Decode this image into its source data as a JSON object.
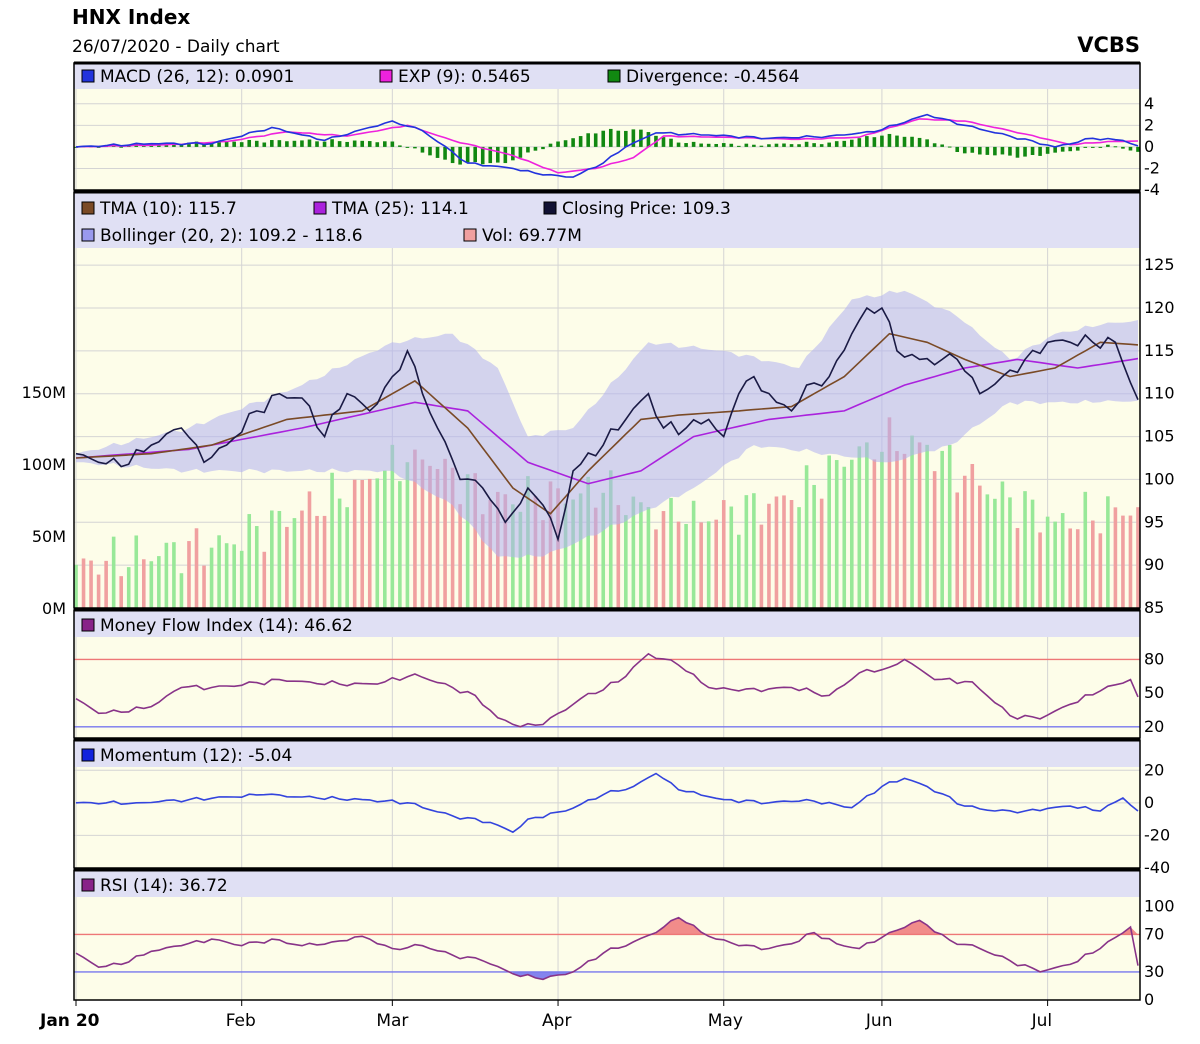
{
  "header": {
    "title": "HNX Index",
    "subtitle": "26/07/2020 - Daily chart",
    "brand": "VCBS"
  },
  "colors": {
    "panel_bg": "#fdfde9",
    "legend_bg": "#e0e0f4",
    "grid": "#d4d4d4",
    "macd": "#2233dd",
    "signal": "#ee22dd",
    "divergence": "#118811",
    "tma10": "#7a4a26",
    "tma25": "#aa22dd",
    "close": "#1a1a44",
    "bollinger_fill": "#b0b0f0",
    "bollinger_swatch": "#9999ee",
    "vol_up": "#98e898",
    "vol_down": "#f0a0a0",
    "mfi": "#883388",
    "momentum": "#3344dd",
    "rsi": "#883388",
    "line_high": "#ee7777",
    "line_low": "#7777ee",
    "overbought_fill": "#f08080",
    "oversold_fill": "#7777ee"
  },
  "legends": {
    "macd": [
      {
        "label": "MACD (26, 12): 0.0901",
        "color": "#2233dd"
      },
      {
        "label": "EXP (9): 0.5465",
        "color": "#ee22dd"
      },
      {
        "label": "Divergence: -0.4564",
        "color": "#118811"
      }
    ],
    "price_row1": [
      {
        "label": "TMA (10): 115.7",
        "color": "#7a4a26"
      },
      {
        "label": "TMA (25): 114.1",
        "color": "#aa22dd"
      },
      {
        "label": "Closing Price: 109.3",
        "color": "#111133"
      }
    ],
    "price_row2": [
      {
        "label": "Bollinger (20, 2): 109.2 - 118.6",
        "color": "#9999ee"
      },
      {
        "label": "Vol: 69.77M",
        "color": "#f0a0a0"
      }
    ],
    "mfi": {
      "label": "Money Flow Index (14): 46.62",
      "color": "#882288"
    },
    "momentum": {
      "label": "Momentum (12): -5.04",
      "color": "#1122dd"
    },
    "rsi": {
      "label": "RSI (14): 36.72",
      "color": "#882288"
    }
  },
  "chart_data": [
    {
      "type": "line",
      "name": "price",
      "x_labels": [
        "Jan 20",
        "Feb",
        "Mar",
        "Apr",
        "May",
        "Jun",
        "Jul"
      ],
      "ylim": [
        85,
        127
      ],
      "y_ticks": [
        "85",
        "90",
        "95",
        "100",
        "105",
        "110",
        "115",
        "120",
        "125"
      ],
      "volume_ticks": [
        "0M",
        "50M",
        "100M",
        "150M"
      ],
      "volume_ylim": [
        0,
        250
      ],
      "close_anchors": [
        [
          0,
          103
        ],
        [
          3,
          102
        ],
        [
          6,
          101.5
        ],
        [
          10,
          104
        ],
        [
          14,
          106
        ],
        [
          17,
          102
        ],
        [
          20,
          104
        ],
        [
          24,
          108
        ],
        [
          27,
          110
        ],
        [
          30,
          109.5
        ],
        [
          33,
          105
        ],
        [
          36,
          110
        ],
        [
          39,
          108
        ],
        [
          42,
          112
        ],
        [
          44,
          115
        ],
        [
          46,
          110
        ],
        [
          48,
          106
        ],
        [
          51,
          100
        ],
        [
          54,
          99
        ],
        [
          57,
          95
        ],
        [
          60,
          99
        ],
        [
          62,
          97
        ],
        [
          64,
          93
        ],
        [
          66,
          101
        ],
        [
          70,
          104
        ],
        [
          73,
          107
        ],
        [
          76,
          110
        ],
        [
          78,
          106
        ],
        [
          81,
          106
        ],
        [
          84,
          107
        ],
        [
          86,
          105
        ],
        [
          88,
          110
        ],
        [
          90,
          112
        ],
        [
          93,
          109
        ],
        [
          95,
          108
        ],
        [
          97,
          111
        ],
        [
          100,
          112
        ],
        [
          103,
          117
        ],
        [
          105,
          120
        ],
        [
          107,
          120
        ],
        [
          109,
          115
        ],
        [
          112,
          114
        ],
        [
          115,
          114
        ],
        [
          117,
          114
        ],
        [
          120,
          110
        ],
        [
          123,
          112
        ],
        [
          126,
          114
        ],
        [
          129,
          116
        ],
        [
          132,
          116
        ],
        [
          135,
          116
        ],
        [
          138,
          116
        ],
        [
          141,
          109.3
        ]
      ],
      "tma10_anchors": [
        [
          0,
          102.5
        ],
        [
          10,
          103
        ],
        [
          18,
          104
        ],
        [
          28,
          107
        ],
        [
          38,
          108
        ],
        [
          45,
          111.5
        ],
        [
          52,
          106
        ],
        [
          58,
          99
        ],
        [
          63,
          96
        ],
        [
          68,
          101
        ],
        [
          75,
          107
        ],
        [
          80,
          107.5
        ],
        [
          88,
          108
        ],
        [
          95,
          108.5
        ],
        [
          102,
          112
        ],
        [
          108,
          117
        ],
        [
          113,
          116
        ],
        [
          118,
          114
        ],
        [
          124,
          112
        ],
        [
          130,
          113
        ],
        [
          136,
          116
        ],
        [
          141,
          115.7
        ]
      ],
      "tma25_anchors": [
        [
          0,
          102.5
        ],
        [
          15,
          103.5
        ],
        [
          30,
          106
        ],
        [
          45,
          109
        ],
        [
          52,
          108
        ],
        [
          60,
          102
        ],
        [
          68,
          99.5
        ],
        [
          75,
          101
        ],
        [
          82,
          105
        ],
        [
          92,
          107
        ],
        [
          102,
          108
        ],
        [
          110,
          111
        ],
        [
          118,
          113
        ],
        [
          125,
          114
        ],
        [
          133,
          113
        ],
        [
          141,
          114.1
        ]
      ],
      "bollinger_upper": [
        [
          0,
          103
        ],
        [
          15,
          106
        ],
        [
          30,
          111
        ],
        [
          42,
          116
        ],
        [
          50,
          117
        ],
        [
          56,
          113
        ],
        [
          60,
          105
        ],
        [
          66,
          106
        ],
        [
          76,
          116
        ],
        [
          86,
          115
        ],
        [
          96,
          113
        ],
        [
          103,
          121
        ],
        [
          110,
          122
        ],
        [
          117,
          119
        ],
        [
          124,
          114
        ],
        [
          130,
          117
        ],
        [
          136,
          118
        ],
        [
          141,
          118.6
        ]
      ],
      "bollinger_lower": [
        [
          0,
          102
        ],
        [
          15,
          101
        ],
        [
          30,
          101
        ],
        [
          42,
          101
        ],
        [
          50,
          97
        ],
        [
          56,
          91
        ],
        [
          62,
          91
        ],
        [
          70,
          94
        ],
        [
          82,
          99
        ],
        [
          90,
          104
        ],
        [
          100,
          103
        ],
        [
          108,
          102
        ],
        [
          116,
          104
        ],
        [
          124,
          109
        ],
        [
          130,
          109
        ],
        [
          136,
          109
        ],
        [
          141,
          109.2
        ]
      ],
      "volume_anchors": [
        [
          0,
          30
        ],
        [
          20,
          45
        ],
        [
          40,
          90
        ],
        [
          45,
          110
        ],
        [
          55,
          75
        ],
        [
          70,
          80
        ],
        [
          80,
          60
        ],
        [
          95,
          75
        ],
        [
          105,
          115
        ],
        [
          112,
          115
        ],
        [
          120,
          85
        ],
        [
          130,
          60
        ],
        [
          141,
          70
        ]
      ]
    },
    {
      "type": "bar",
      "name": "macd",
      "ylim": [
        -4,
        5
      ],
      "y_ticks": [
        "-4",
        "-2",
        "0",
        "2",
        "4"
      ],
      "macd_anchors": [
        [
          0,
          0
        ],
        [
          10,
          0.3
        ],
        [
          18,
          0.3
        ],
        [
          26,
          1.8
        ],
        [
          33,
          0.6
        ],
        [
          42,
          2.4
        ],
        [
          46,
          1.5
        ],
        [
          52,
          -1.5
        ],
        [
          58,
          -2.0
        ],
        [
          62,
          -2.6
        ],
        [
          66,
          -2.8
        ],
        [
          70,
          -1.5
        ],
        [
          73,
          0
        ],
        [
          77,
          1.3
        ],
        [
          84,
          1.1
        ],
        [
          92,
          0.8
        ],
        [
          100,
          1.0
        ],
        [
          106,
          1.4
        ],
        [
          113,
          3.0
        ],
        [
          118,
          2.0
        ],
        [
          124,
          1.0
        ],
        [
          130,
          0
        ],
        [
          135,
          0.8
        ],
        [
          139,
          0.6
        ],
        [
          141,
          0.09
        ]
      ],
      "signal_anchors": [
        [
          0,
          0
        ],
        [
          12,
          0.2
        ],
        [
          20,
          0.5
        ],
        [
          28,
          1.4
        ],
        [
          36,
          1.0
        ],
        [
          44,
          2.0
        ],
        [
          50,
          0.6
        ],
        [
          58,
          -0.8
        ],
        [
          64,
          -2.4
        ],
        [
          69,
          -2.0
        ],
        [
          74,
          -1.0
        ],
        [
          78,
          1.0
        ],
        [
          86,
          0.9
        ],
        [
          96,
          0.7
        ],
        [
          104,
          0.9
        ],
        [
          112,
          2.6
        ],
        [
          118,
          2.4
        ],
        [
          126,
          1.2
        ],
        [
          132,
          0.2
        ],
        [
          137,
          0.5
        ],
        [
          141,
          0.55
        ]
      ],
      "divergence_anchors": [
        [
          0,
          0
        ],
        [
          10,
          0.2
        ],
        [
          20,
          0.5
        ],
        [
          30,
          0.6
        ],
        [
          42,
          0.5
        ],
        [
          50,
          -1.5
        ],
        [
          57,
          -1.5
        ],
        [
          64,
          0.5
        ],
        [
          70,
          1.5
        ],
        [
          75,
          1.6
        ],
        [
          80,
          0.4
        ],
        [
          90,
          0.2
        ],
        [
          100,
          0.4
        ],
        [
          108,
          1.2
        ],
        [
          113,
          0.7
        ],
        [
          118,
          -0.6
        ],
        [
          126,
          -0.9
        ],
        [
          132,
          -0.4
        ],
        [
          137,
          0.2
        ],
        [
          141,
          -0.46
        ]
      ]
    },
    {
      "type": "line",
      "name": "money_flow_index",
      "ylim": [
        10,
        100
      ],
      "y_ticks": [
        "20",
        "50",
        "80"
      ],
      "levels": [
        20,
        80
      ],
      "anchors": [
        [
          0,
          45
        ],
        [
          3,
          32
        ],
        [
          6,
          33
        ],
        [
          10,
          38
        ],
        [
          14,
          55
        ],
        [
          18,
          55
        ],
        [
          22,
          57
        ],
        [
          27,
          62
        ],
        [
          31,
          60
        ],
        [
          35,
          58
        ],
        [
          40,
          58
        ],
        [
          45,
          67
        ],
        [
          50,
          55
        ],
        [
          53,
          48
        ],
        [
          56,
          28
        ],
        [
          59,
          20
        ],
        [
          62,
          22
        ],
        [
          67,
          45
        ],
        [
          72,
          60
        ],
        [
          76,
          85
        ],
        [
          80,
          75
        ],
        [
          84,
          55
        ],
        [
          88,
          52
        ],
        [
          95,
          55
        ],
        [
          100,
          48
        ],
        [
          104,
          68
        ],
        [
          108,
          73
        ],
        [
          110,
          80
        ],
        [
          114,
          62
        ],
        [
          119,
          60
        ],
        [
          124,
          30
        ],
        [
          128,
          27
        ],
        [
          132,
          40
        ],
        [
          136,
          52
        ],
        [
          140,
          62
        ],
        [
          141,
          46.62
        ]
      ]
    },
    {
      "type": "line",
      "name": "momentum",
      "ylim": [
        -40,
        22
      ],
      "y_ticks": [
        "-40",
        "-20",
        "0",
        "20"
      ],
      "anchors": [
        [
          0,
          0
        ],
        [
          8,
          0
        ],
        [
          15,
          2
        ],
        [
          25,
          5
        ],
        [
          32,
          3
        ],
        [
          38,
          2
        ],
        [
          44,
          0
        ],
        [
          50,
          -8
        ],
        [
          55,
          -12
        ],
        [
          58,
          -18
        ],
        [
          60,
          -10
        ],
        [
          65,
          -5
        ],
        [
          70,
          5
        ],
        [
          74,
          10
        ],
        [
          77,
          18
        ],
        [
          80,
          8
        ],
        [
          86,
          2
        ],
        [
          92,
          0
        ],
        [
          97,
          2
        ],
        [
          103,
          -3
        ],
        [
          107,
          10
        ],
        [
          110,
          15
        ],
        [
          113,
          10
        ],
        [
          118,
          -2
        ],
        [
          122,
          -5
        ],
        [
          126,
          -5
        ],
        [
          132,
          -2
        ],
        [
          136,
          -5
        ],
        [
          139,
          3
        ],
        [
          141,
          -5.04
        ]
      ]
    },
    {
      "type": "area",
      "name": "rsi",
      "ylim": [
        0,
        110
      ],
      "y_ticks": [
        "0",
        "30",
        "70",
        "100"
      ],
      "levels": [
        30,
        70
      ],
      "anchors": [
        [
          0,
          50
        ],
        [
          3,
          35
        ],
        [
          6,
          38
        ],
        [
          10,
          52
        ],
        [
          14,
          58
        ],
        [
          18,
          65
        ],
        [
          22,
          58
        ],
        [
          26,
          65
        ],
        [
          30,
          58
        ],
        [
          34,
          62
        ],
        [
          38,
          68
        ],
        [
          42,
          55
        ],
        [
          46,
          58
        ],
        [
          50,
          48
        ],
        [
          54,
          42
        ],
        [
          58,
          28
        ],
        [
          62,
          22
        ],
        [
          66,
          30
        ],
        [
          70,
          50
        ],
        [
          74,
          62
        ],
        [
          77,
          72
        ],
        [
          80,
          88
        ],
        [
          84,
          68
        ],
        [
          88,
          58
        ],
        [
          92,
          55
        ],
        [
          95,
          60
        ],
        [
          98,
          72
        ],
        [
          101,
          60
        ],
        [
          104,
          55
        ],
        [
          108,
          72
        ],
        [
          112,
          85
        ],
        [
          116,
          64
        ],
        [
          120,
          55
        ],
        [
          124,
          42
        ],
        [
          128,
          30
        ],
        [
          132,
          38
        ],
        [
          136,
          55
        ],
        [
          140,
          78
        ],
        [
          141,
          36.72
        ]
      ]
    }
  ]
}
